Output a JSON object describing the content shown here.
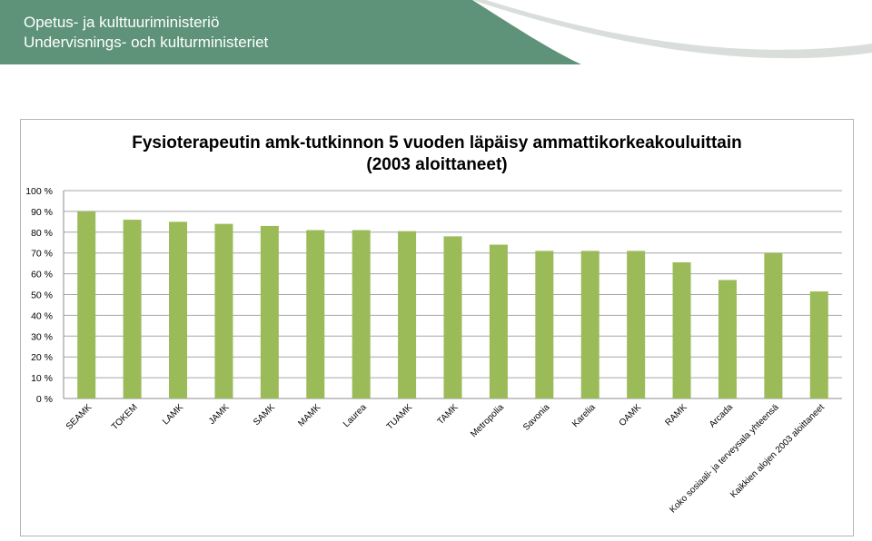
{
  "header": {
    "line1": "Opetus- ja kulttuuriministeriö",
    "line2": "Undervisnings- och kulturministeriet"
  },
  "colors": {
    "banner": "#5e9379",
    "bar": "#9bbb59",
    "grid": "#a6a6a6"
  },
  "chart_data": {
    "type": "bar",
    "title_line1": "Fysioterapeutin amk-tutkinnon 5 vuoden läpäisy ammattikorkeakouluittain",
    "title_line2": "(2003 aloittaneet)",
    "categories": [
      "SEAMK",
      "TOKEM",
      "LAMK",
      "JAMK",
      "SAMK",
      "MAMK",
      "Laurea",
      "TUAMK",
      "TAMK",
      "Metropolia",
      "Savonia",
      "Karelia",
      "OAMK",
      "RAMK",
      "Arcada",
      "Koko sosiaali- ja terveysala yhteensä",
      "Kaikkien alojen 2003 aloittaneet"
    ],
    "values": [
      90,
      86,
      85,
      84,
      83,
      81,
      81,
      80.5,
      78,
      74,
      71,
      71,
      71,
      65.5,
      57,
      70,
      51.5
    ],
    "yticks": [
      "0 %",
      "10 %",
      "20 %",
      "30 %",
      "40 %",
      "50 %",
      "60 %",
      "70 %",
      "80 %",
      "90 %",
      "100 %"
    ],
    "ylim": [
      0,
      100
    ],
    "grid": true,
    "legend": "none"
  }
}
